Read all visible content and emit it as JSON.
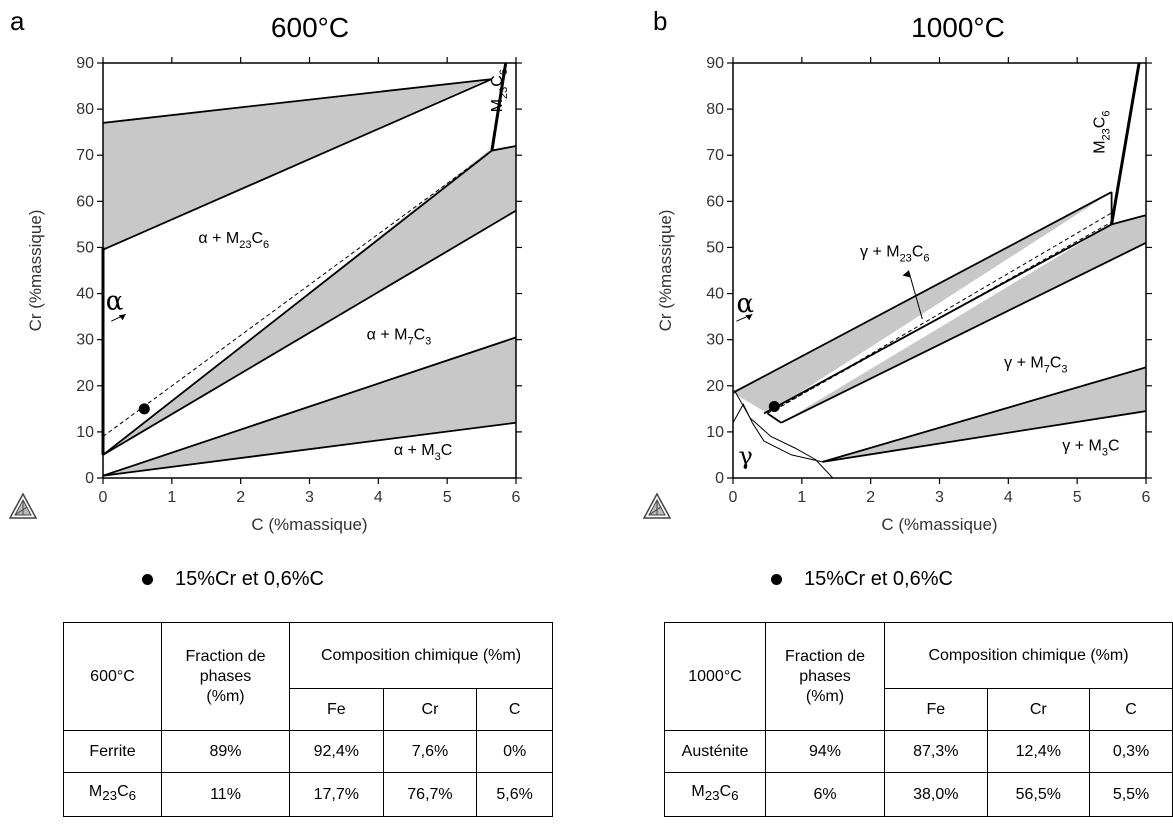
{
  "panels": [
    {
      "letter": "a",
      "title": "600°C",
      "xlabel": "C (%massique)",
      "ylabel": "Cr (%massique)",
      "xlim": [
        0,
        6
      ],
      "ylim": [
        0,
        90
      ],
      "xticks": [
        "0",
        "1",
        "2",
        "3",
        "4",
        "5",
        "6"
      ],
      "yticks": [
        "0",
        "10",
        "20",
        "30",
        "40",
        "50",
        "60",
        "70",
        "80",
        "90"
      ],
      "regions": [
        {
          "text": "α + M",
          "sub": "23",
          "text2": "C",
          "sub2": "6",
          "x": 1.9,
          "y": 51
        },
        {
          "text": "α + M",
          "sub": "7",
          "text2": "C",
          "sub2": "3",
          "x": 4.3,
          "y": 30
        },
        {
          "text": "α + M",
          "sub": "3",
          "text2": "C",
          "sub2": "",
          "x": 4.65,
          "y": 5
        },
        {
          "text": "M",
          "sub": "23",
          "text2": "C",
          "sub2": "6",
          "x": 5.8,
          "y": 84,
          "rotate": true
        }
      ],
      "phase_label": "α",
      "point": {
        "x": 0.6,
        "y": 15
      },
      "legend": "15%Cr et 0,6%C",
      "table": {
        "corner": "600°C",
        "col_fraction": "Fraction de phases",
        "col_fraction_unit": "(%m)",
        "col_comp": "Composition chimique (%m)",
        "elements": [
          "Fe",
          "Cr",
          "C"
        ],
        "rows": [
          {
            "phase": "Ferrite",
            "phase_sub": "",
            "fraction": "89%",
            "values": [
              "92,4%",
              "7,6%",
              "0%"
            ]
          },
          {
            "phase": "M",
            "phase_sub": "23",
            "phase_tail": "C",
            "phase_sub2": "6",
            "fraction": "11%",
            "values": [
              "17,7%",
              "76,7%",
              "5,6%"
            ]
          }
        ]
      }
    },
    {
      "letter": "b",
      "title": "1000°C",
      "xlabel": "C (%massique)",
      "ylabel": "Cr (%massique)",
      "xlim": [
        0,
        6
      ],
      "ylim": [
        0,
        90
      ],
      "xticks": [
        "0",
        "1",
        "2",
        "3",
        "4",
        "5",
        "6"
      ],
      "yticks": [
        "0",
        "10",
        "20",
        "30",
        "40",
        "50",
        "60",
        "70",
        "80",
        "90"
      ],
      "regions": [
        {
          "text": "γ + M",
          "sub": "23",
          "text2": "C",
          "sub2": "6",
          "x": 2.35,
          "y": 48
        },
        {
          "text": "γ + M",
          "sub": "7",
          "text2": "C",
          "sub2": "3",
          "x": 4.4,
          "y": 24
        },
        {
          "text": "γ + M",
          "sub": "3",
          "text2": "C",
          "sub2": "",
          "x": 5.2,
          "y": 6
        },
        {
          "text": "M",
          "sub": "23",
          "text2": "C",
          "sub2": "6",
          "x": 5.4,
          "y": 75,
          "rotate": true
        }
      ],
      "phase_label": "α",
      "gamma_label": "γ",
      "point": {
        "x": 0.6,
        "y": 15.5
      },
      "legend": "15%Cr et 0,6%C",
      "table": {
        "corner": "1000°C",
        "col_fraction": "Fraction de phases",
        "col_fraction_unit": "(%m)",
        "col_comp": "Composition chimique (%m)",
        "elements": [
          "Fe",
          "Cr",
          "C"
        ],
        "rows": [
          {
            "phase": "Austénite",
            "phase_sub": "",
            "fraction": "94%",
            "values": [
              "87,3%",
              "12,4%",
              "0,3%"
            ]
          },
          {
            "phase": "M",
            "phase_sub": "23",
            "phase_tail": "C",
            "phase_sub2": "6",
            "fraction": "6%",
            "values": [
              "38,0%",
              "56,5%",
              "5,5%"
            ]
          }
        ]
      }
    }
  ]
}
